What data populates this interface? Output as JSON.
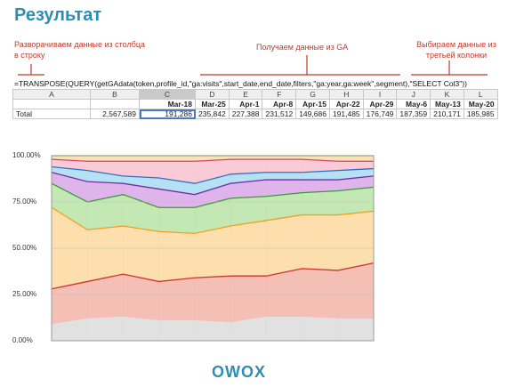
{
  "title": "Результат",
  "annotations": {
    "left": "Разворачиваем данные из столбца в строку",
    "middle": "Получаем данные из GA",
    "right": "Выбираем данные из третьей колонки"
  },
  "formula": "=TRANSPOSE(QUERY(getGAdata(token,profile_id,\"ga:visits\",start_date,end_date,filters,\"ga:year,ga:week\",segment),\"SELECT Col3\"))",
  "sheet": {
    "columns": [
      "A",
      "B",
      "C",
      "D",
      "E",
      "F",
      "G",
      "H",
      "I",
      "J",
      "K",
      "L"
    ],
    "selected_column": "C",
    "date_row": [
      "",
      "",
      "Mar-18",
      "Mar-25",
      "Apr-1",
      "Apr-8",
      "Apr-15",
      "Apr-22",
      "Apr-29",
      "May-6",
      "May-13",
      "May-20"
    ],
    "total_row": [
      "Total",
      "2,567,589",
      "191,286",
      "235,842",
      "227,388",
      "231,512",
      "149,686",
      "191,485",
      "176,749",
      "187,359",
      "210,171",
      "185,985"
    ]
  },
  "chart_data": {
    "type": "area",
    "stacked": "percent",
    "y_ticks": [
      "100.00%",
      "75.00%",
      "50.00%",
      "25.00%",
      "0.00%"
    ],
    "ylim": [
      0,
      100
    ],
    "grid": true,
    "x": [
      0,
      1,
      2,
      3,
      4,
      5,
      6,
      7,
      8,
      9
    ],
    "series": [
      {
        "color": "#dcdcdc",
        "values": [
          9,
          12,
          13,
          11,
          11,
          10,
          13,
          13,
          12,
          12
        ]
      },
      {
        "color": "#f2b4a8",
        "values": [
          19,
          20,
          23,
          21,
          23,
          25,
          22,
          26,
          26,
          30
        ]
      },
      {
        "color": "#fdd9a0",
        "values": [
          44,
          28,
          26,
          27,
          24,
          27,
          30,
          29,
          30,
          28
        ]
      },
      {
        "color": "#b9e4a6",
        "values": [
          13,
          15,
          17,
          13,
          14,
          15,
          13,
          12,
          13,
          13
        ]
      },
      {
        "color": "#d9a7e8",
        "values": [
          6,
          11,
          6,
          10,
          7,
          8,
          9,
          7,
          6,
          6
        ]
      },
      {
        "color": "#a9dcf3",
        "values": [
          3,
          6,
          4,
          6,
          6,
          5,
          4,
          4,
          5,
          4
        ]
      },
      {
        "color": "#f7c2cf",
        "values": [
          4,
          5,
          8,
          9,
          12,
          8,
          7,
          7,
          5,
          4
        ]
      },
      {
        "color": "#f4dfa6",
        "values": [
          2,
          3,
          3,
          3,
          3,
          2,
          2,
          2,
          3,
          3
        ]
      }
    ],
    "lines": [
      {
        "color": "#cc3333",
        "series_index": 1
      },
      {
        "color": "#f0a020",
        "series_index": 2
      },
      {
        "color": "#3a9a3a",
        "series_index": 3
      },
      {
        "color": "#7030a0",
        "series_index": 4
      },
      {
        "color": "#3070c0",
        "series_index": 5
      },
      {
        "color": "#d8407a",
        "series_index": 6
      },
      {
        "color": "#d0a040",
        "series_index": 7
      }
    ]
  },
  "logo": "OWOX"
}
